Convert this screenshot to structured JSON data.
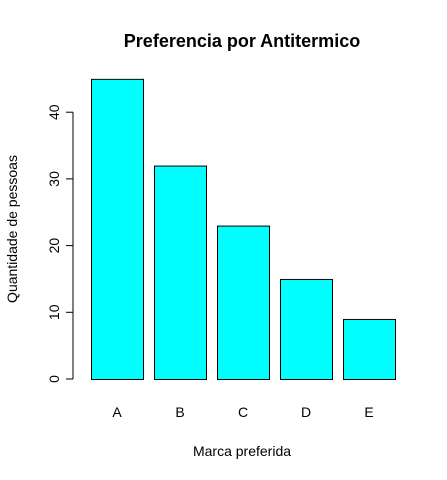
{
  "chart_data": {
    "type": "bar",
    "title": "Preferencia por Antitermico",
    "xlabel": "Marca preferida",
    "ylabel": "Quantidade de pessoas",
    "categories": [
      "A",
      "B",
      "C",
      "D",
      "E"
    ],
    "values": [
      45,
      32,
      23,
      15,
      9
    ],
    "yticks": [
      0,
      10,
      20,
      30,
      40
    ],
    "ylim": [
      0,
      47
    ],
    "grid": false,
    "legend": "none",
    "colors": {
      "bar_fill": "#00ffff",
      "bar_stroke": "#000000",
      "axis": "#000000"
    }
  }
}
